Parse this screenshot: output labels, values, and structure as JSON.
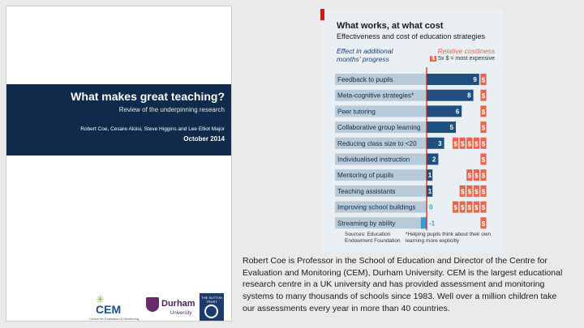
{
  "report": {
    "title": "What makes great teaching?",
    "subtitle": "Review of the underpinning research",
    "authors": "Robert Coe, Cesare Aloisi, Steve Higgins and Lee Elliot Major",
    "date": "October 2014",
    "logos": {
      "cem": "CEM",
      "cem_tagline": "Centre for Evaluation & Monitoring",
      "durham_line1": "Durham",
      "durham_line2": "University",
      "sutton": "THE SUTTON TRUST"
    },
    "colors": {
      "band": "#0f2a4a"
    }
  },
  "chart_data": {
    "type": "bar",
    "title": "What works, at what cost",
    "subtitle": "Effectiveness and cost of education strategies",
    "left_header": "Effect in additional months' progress",
    "right_header": "Relative costliness",
    "cost_key": "5x $ = most expensive",
    "cost_symbol": "$",
    "categories": [
      "Feedback to pupils",
      "Meta-cognitive strategies*",
      "Peer tutoring",
      "Collaborative group learning",
      "Reducing class size to <20",
      "Individualised instruction",
      "Mentoring of pupils",
      "Teaching assistants",
      "Improving school buildings",
      "Streaming by ability"
    ],
    "values": [
      9,
      8,
      6,
      5,
      3,
      2,
      1,
      1,
      0,
      -1
    ],
    "value_labels": [
      "9",
      "8",
      "6",
      "5",
      "3",
      "2",
      "1",
      "1",
      "0",
      "-1"
    ],
    "cost": [
      1,
      1,
      1,
      1,
      5,
      1,
      3,
      4,
      5,
      1
    ],
    "xlim": [
      -1,
      9
    ],
    "source": "Sources: Education Endowment Foundation",
    "footnote": "*Helping pupils think about their own learning more explicitly",
    "colors": {
      "bar_positive": "#1f4f80",
      "bar_negative": "#3d9ad1",
      "cost": "#e8644b",
      "zero_line": "#e3120b",
      "category_box": "#b7cad9",
      "accent": "#e3120b"
    }
  },
  "bio": "Robert Coe is Professor in the School of Education and Director of the Centre for Evaluation and Monitoring (CEM), Durham University. CEM is the largest educational research centre in a UK university and has provided assessment and monitoring systems to many thousands of schools since 1983. Well over a million children take our assessments every year in more than 40 countries."
}
